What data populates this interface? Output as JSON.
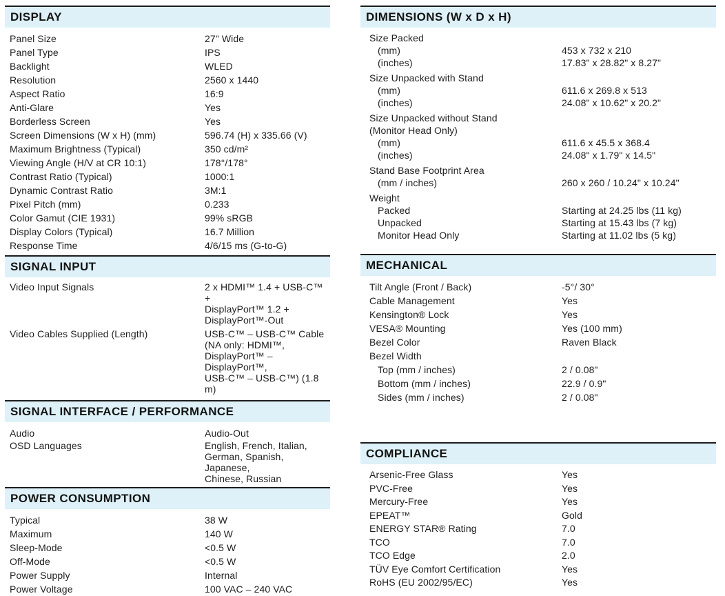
{
  "theme": {
    "background": "#ffffff",
    "header_band_color": "#def1f8",
    "rule_color": "#1c1c1c",
    "text_color": "#1f1f1f"
  },
  "columns": [
    {
      "key": "left",
      "sections": [
        {
          "key": "display",
          "title": "DISPLAY",
          "rows": [
            {
              "label": "Panel Size",
              "value": "27\" Wide"
            },
            {
              "label": "Panel Type",
              "value": "IPS"
            },
            {
              "label": "Backlight",
              "value": "WLED"
            },
            {
              "label": "Resolution",
              "value": "2560 x 1440"
            },
            {
              "label": "Aspect Ratio",
              "value": "16:9"
            },
            {
              "label": "Anti-Glare",
              "value": "Yes"
            },
            {
              "label": "Borderless Screen",
              "value": "Yes"
            },
            {
              "label": "Screen Dimensions (W x H) (mm)",
              "value": "596.74 (H) x 335.66 (V)"
            },
            {
              "label": "Maximum Brightness (Typical)",
              "value": "350 cd/m²"
            },
            {
              "label": "Viewing Angle (H/V at CR 10:1)",
              "value": "178°/178°"
            },
            {
              "label": "Contrast Ratio (Typical)",
              "value": "1000:1"
            },
            {
              "label": "Dynamic Contrast Ratio",
              "value": "3M:1"
            },
            {
              "label": "Pixel Pitch (mm)",
              "value": "0.233"
            },
            {
              "label": "Color Gamut (CIE 1931)",
              "value": "99% sRGB"
            },
            {
              "label": "Display Colors (Typical)",
              "value": "16.7 Million"
            },
            {
              "label": "Response Time",
              "value": "4/6/15 ms (G-to-G)"
            }
          ]
        },
        {
          "key": "signal-input",
          "title": "SIGNAL INPUT",
          "rows": [
            {
              "label": "Video Input Signals",
              "lines": [
                "2 x HDMI™ 1.4 + USB-C™ +",
                "DisplayPort™ 1.2 +",
                "DisplayPort™-Out"
              ]
            },
            {
              "label": "Video Cables Supplied (Length)",
              "gap": true,
              "lines": [
                "USB-C™ – USB-C™ Cable",
                "(NA only: HDMI™,",
                "DisplayPort™ – DisplayPort™,",
                "USB-C™ – USB-C™) (1.8 m)"
              ]
            }
          ]
        },
        {
          "key": "signal-interface",
          "title": "SIGNAL INTERFACE / PERFORMANCE",
          "rows": [
            {
              "label": "Audio",
              "value": "Audio-Out"
            },
            {
              "label": "OSD Languages",
              "lines": [
                "English, French, Italian,",
                "German, Spanish, Japanese,",
                "Chinese, Russian"
              ]
            }
          ]
        },
        {
          "key": "power",
          "title": "POWER CONSUMPTION",
          "rows": [
            {
              "label": "Typical",
              "value": "38 W"
            },
            {
              "label": "Maximum",
              "value": "140 W"
            },
            {
              "label": "Sleep-Mode",
              "value": "<0.5 W"
            },
            {
              "label": "Off-Mode",
              "value": "<0.5 W"
            },
            {
              "label": "Power Supply",
              "value": "Internal"
            },
            {
              "label": "Power Voltage",
              "value": "100 VAC – 240 VAC"
            }
          ]
        }
      ]
    },
    {
      "key": "right",
      "sections": [
        {
          "key": "dimensions",
          "title": "DIMENSIONS (W x D x H)",
          "rows": [
            {
              "label": "Size Packed"
            },
            {
              "label": "(mm)",
              "indent": true,
              "value": "453 x 732 x 210"
            },
            {
              "label": "(inches)",
              "indent": true,
              "value": "17.83\" x 28.82\" x 8.27\""
            },
            {
              "label": "Size Unpacked with Stand",
              "gap": true
            },
            {
              "label": "(mm)",
              "indent": true,
              "value": "611.6 x 269.8 x 513"
            },
            {
              "label": "(inches)",
              "indent": true,
              "value": "24.08\" x 10.62\" x 20.2\""
            },
            {
              "label": "Size Unpacked without Stand",
              "label2": "(Monitor Head Only)",
              "gap": true
            },
            {
              "label": "(mm)",
              "indent": true,
              "value": "611.6 x 45.5 x 368.4"
            },
            {
              "label": "(inches)",
              "indent": true,
              "value": "24.08\" x 1.79\" x 14.5\""
            },
            {
              "label": "Stand Base Footprint Area",
              "gap": true
            },
            {
              "label": "(mm / inches)",
              "indent": true,
              "value": "260 x 260  / 10.24\" x 10.24\""
            },
            {
              "label": "Weight",
              "gap": true
            },
            {
              "label": "Packed",
              "indent": true,
              "value": "Starting at 24.25 lbs (11 kg)"
            },
            {
              "label": "Unpacked",
              "indent": true,
              "value": "Starting at 15.43 lbs (7 kg)"
            },
            {
              "label": "Monitor Head Only",
              "indent": true,
              "value": "Starting at 11.02 lbs (5 kg)"
            }
          ]
        },
        {
          "key": "mechanical",
          "title": "MECHANICAL",
          "rows": [
            {
              "label": "Tilt Angle (Front / Back)",
              "value": "-5°/ 30°"
            },
            {
              "label": "Cable Management",
              "value": "Yes"
            },
            {
              "label": "Kensington® Lock",
              "value": "Yes"
            },
            {
              "label": "VESA® Mounting",
              "value": "Yes (100 mm)"
            },
            {
              "label": "Bezel Color",
              "value": "Raven Black"
            },
            {
              "label": "Bezel Width"
            },
            {
              "label": "Top (mm / inches)",
              "indent": true,
              "value": "2 / 0.08\""
            },
            {
              "label": "Bottom (mm / inches)",
              "indent": true,
              "value": "22.9 / 0.9\""
            },
            {
              "label": "Sides (mm / inches)",
              "indent": true,
              "value": "2 / 0.08\""
            }
          ]
        },
        {
          "key": "compliance",
          "title": "COMPLIANCE",
          "rows": [
            {
              "label": "Arsenic-Free Glass",
              "value": "Yes"
            },
            {
              "label": "PVC-Free",
              "value": "Yes"
            },
            {
              "label": "Mercury-Free",
              "value": "Yes"
            },
            {
              "label": "EPEAT™",
              "value": "Gold"
            },
            {
              "label": "ENERGY STAR® Rating",
              "value": "7.0"
            },
            {
              "label": "TCO",
              "value": "7.0"
            },
            {
              "label": "TCO Edge",
              "value": "2.0"
            },
            {
              "label": "TÜV Eye Comfort Certification",
              "value": "Yes"
            },
            {
              "label": "RoHS (EU 2002/95/EC)",
              "value": "Yes"
            }
          ]
        }
      ]
    }
  ]
}
